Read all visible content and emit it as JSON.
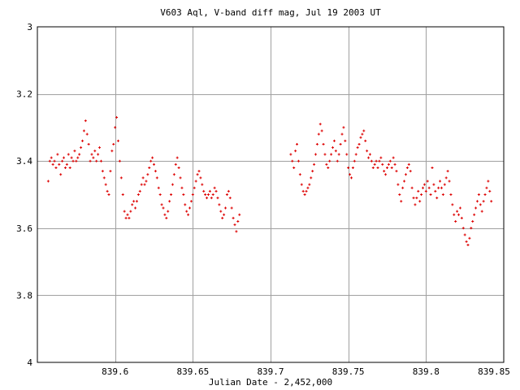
{
  "chart_data": {
    "type": "scatter",
    "title": "V603 Aql, V-band diff mag, Jul 19 2003 UT",
    "xlabel": "Julian Date - 2,452,000",
    "ylabel": "",
    "xlim": [
      839.55,
      839.85
    ],
    "ylim": [
      4.0,
      3.0
    ],
    "y_inverted": true,
    "grid": true,
    "x_ticks": [
      839.6,
      839.65,
      839.7,
      839.75,
      839.8,
      839.85
    ],
    "x_tick_labels": [
      "839.6",
      "839.65",
      "839.7",
      "839.75",
      "839.8",
      "839.85"
    ],
    "y_ticks": [
      3.0,
      3.2,
      3.4,
      3.6,
      3.8,
      4.0
    ],
    "y_tick_labels": [
      "3",
      "3.2",
      "3.4",
      "3.6",
      "3.8",
      "4"
    ],
    "marker_color": "#dd0000",
    "grid_color": "#a0a0a0",
    "series": [
      {
        "points": [
          [
            839.557,
            3.46
          ],
          [
            839.558,
            3.4
          ],
          [
            839.559,
            3.39
          ],
          [
            839.56,
            3.41
          ],
          [
            839.561,
            3.4
          ],
          [
            839.562,
            3.42
          ],
          [
            839.563,
            3.38
          ],
          [
            839.564,
            3.41
          ],
          [
            839.565,
            3.44
          ],
          [
            839.566,
            3.4
          ],
          [
            839.567,
            3.39
          ],
          [
            839.568,
            3.42
          ],
          [
            839.569,
            3.41
          ],
          [
            839.57,
            3.38
          ],
          [
            839.571,
            3.42
          ],
          [
            839.572,
            3.39
          ],
          [
            839.573,
            3.4
          ],
          [
            839.574,
            3.37
          ],
          [
            839.575,
            3.4
          ],
          [
            839.576,
            3.39
          ],
          [
            839.577,
            3.38
          ],
          [
            839.578,
            3.36
          ],
          [
            839.579,
            3.34
          ],
          [
            839.58,
            3.31
          ],
          [
            839.581,
            3.28
          ],
          [
            839.582,
            3.32
          ],
          [
            839.583,
            3.35
          ],
          [
            839.584,
            3.4
          ],
          [
            839.585,
            3.38
          ],
          [
            839.586,
            3.39
          ],
          [
            839.587,
            3.37
          ],
          [
            839.588,
            3.4
          ],
          [
            839.589,
            3.38
          ],
          [
            839.59,
            3.36
          ],
          [
            839.591,
            3.4
          ],
          [
            839.592,
            3.43
          ],
          [
            839.593,
            3.45
          ],
          [
            839.594,
            3.47
          ],
          [
            839.595,
            3.49
          ],
          [
            839.596,
            3.5
          ],
          [
            839.597,
            3.43
          ],
          [
            839.598,
            3.37
          ],
          [
            839.599,
            3.35
          ],
          [
            839.6,
            3.3
          ],
          [
            839.601,
            3.27
          ],
          [
            839.602,
            3.34
          ],
          [
            839.603,
            3.4
          ],
          [
            839.604,
            3.45
          ],
          [
            839.605,
            3.5
          ],
          [
            839.606,
            3.55
          ],
          [
            839.607,
            3.57
          ],
          [
            839.608,
            3.56
          ],
          [
            839.609,
            3.57
          ],
          [
            839.61,
            3.55
          ],
          [
            839.611,
            3.53
          ],
          [
            839.612,
            3.52
          ],
          [
            839.613,
            3.54
          ],
          [
            839.614,
            3.52
          ],
          [
            839.615,
            3.5
          ],
          [
            839.616,
            3.49
          ],
          [
            839.617,
            3.47
          ],
          [
            839.618,
            3.45
          ],
          [
            839.619,
            3.47
          ],
          [
            839.62,
            3.46
          ],
          [
            839.621,
            3.44
          ],
          [
            839.622,
            3.42
          ],
          [
            839.623,
            3.4
          ],
          [
            839.624,
            3.39
          ],
          [
            839.625,
            3.41
          ],
          [
            839.626,
            3.43
          ],
          [
            839.627,
            3.45
          ],
          [
            839.628,
            3.48
          ],
          [
            839.629,
            3.5
          ],
          [
            839.63,
            3.53
          ],
          [
            839.631,
            3.54
          ],
          [
            839.632,
            3.56
          ],
          [
            839.633,
            3.57
          ],
          [
            839.634,
            3.55
          ],
          [
            839.635,
            3.52
          ],
          [
            839.636,
            3.5
          ],
          [
            839.637,
            3.47
          ],
          [
            839.638,
            3.44
          ],
          [
            839.639,
            3.41
          ],
          [
            839.64,
            3.39
          ],
          [
            839.641,
            3.42
          ],
          [
            839.642,
            3.45
          ],
          [
            839.643,
            3.48
          ],
          [
            839.644,
            3.5
          ],
          [
            839.645,
            3.53
          ],
          [
            839.646,
            3.55
          ],
          [
            839.647,
            3.56
          ],
          [
            839.648,
            3.54
          ],
          [
            839.649,
            3.52
          ],
          [
            839.65,
            3.5
          ],
          [
            839.651,
            3.48
          ],
          [
            839.652,
            3.46
          ],
          [
            839.653,
            3.44
          ],
          [
            839.654,
            3.43
          ],
          [
            839.655,
            3.45
          ],
          [
            839.656,
            3.47
          ],
          [
            839.657,
            3.49
          ],
          [
            839.658,
            3.5
          ],
          [
            839.659,
            3.51
          ],
          [
            839.66,
            3.5
          ],
          [
            839.661,
            3.49
          ],
          [
            839.662,
            3.51
          ],
          [
            839.663,
            3.5
          ],
          [
            839.664,
            3.48
          ],
          [
            839.665,
            3.49
          ],
          [
            839.666,
            3.51
          ],
          [
            839.667,
            3.53
          ],
          [
            839.668,
            3.55
          ],
          [
            839.669,
            3.57
          ],
          [
            839.67,
            3.56
          ],
          [
            839.671,
            3.54
          ],
          [
            839.672,
            3.5
          ],
          [
            839.673,
            3.49
          ],
          [
            839.674,
            3.51
          ],
          [
            839.675,
            3.54
          ],
          [
            839.676,
            3.57
          ],
          [
            839.677,
            3.59
          ],
          [
            839.678,
            3.61
          ],
          [
            839.679,
            3.58
          ],
          [
            839.68,
            3.56
          ],
          [
            839.713,
            3.38
          ],
          [
            839.714,
            3.4
          ],
          [
            839.715,
            3.42
          ],
          [
            839.716,
            3.37
          ],
          [
            839.717,
            3.35
          ],
          [
            839.718,
            3.4
          ],
          [
            839.719,
            3.44
          ],
          [
            839.72,
            3.47
          ],
          [
            839.721,
            3.49
          ],
          [
            839.722,
            3.5
          ],
          [
            839.723,
            3.49
          ],
          [
            839.724,
            3.48
          ],
          [
            839.725,
            3.47
          ],
          [
            839.726,
            3.45
          ],
          [
            839.727,
            3.43
          ],
          [
            839.728,
            3.41
          ],
          [
            839.729,
            3.38
          ],
          [
            839.73,
            3.35
          ],
          [
            839.731,
            3.32
          ],
          [
            839.732,
            3.29
          ],
          [
            839.733,
            3.31
          ],
          [
            839.734,
            3.35
          ],
          [
            839.735,
            3.38
          ],
          [
            839.736,
            3.41
          ],
          [
            839.737,
            3.42
          ],
          [
            839.738,
            3.4
          ],
          [
            839.739,
            3.38
          ],
          [
            839.74,
            3.36
          ],
          [
            839.741,
            3.34
          ],
          [
            839.742,
            3.37
          ],
          [
            839.743,
            3.4
          ],
          [
            839.744,
            3.38
          ],
          [
            839.745,
            3.35
          ],
          [
            839.746,
            3.32
          ],
          [
            839.747,
            3.3
          ],
          [
            839.748,
            3.34
          ],
          [
            839.749,
            3.38
          ],
          [
            839.75,
            3.42
          ],
          [
            839.751,
            3.44
          ],
          [
            839.752,
            3.45
          ],
          [
            839.753,
            3.42
          ],
          [
            839.754,
            3.4
          ],
          [
            839.755,
            3.38
          ],
          [
            839.756,
            3.36
          ],
          [
            839.757,
            3.35
          ],
          [
            839.758,
            3.33
          ],
          [
            839.759,
            3.32
          ],
          [
            839.76,
            3.31
          ],
          [
            839.761,
            3.34
          ],
          [
            839.762,
            3.37
          ],
          [
            839.763,
            3.39
          ],
          [
            839.764,
            3.38
          ],
          [
            839.765,
            3.4
          ],
          [
            839.766,
            3.42
          ],
          [
            839.767,
            3.41
          ],
          [
            839.768,
            3.4
          ],
          [
            839.769,
            3.42
          ],
          [
            839.77,
            3.4
          ],
          [
            839.771,
            3.39
          ],
          [
            839.772,
            3.41
          ],
          [
            839.773,
            3.43
          ],
          [
            839.774,
            3.44
          ],
          [
            839.775,
            3.42
          ],
          [
            839.776,
            3.41
          ],
          [
            839.777,
            3.4
          ],
          [
            839.778,
            3.42
          ],
          [
            839.779,
            3.39
          ],
          [
            839.78,
            3.41
          ],
          [
            839.781,
            3.43
          ],
          [
            839.782,
            3.47
          ],
          [
            839.783,
            3.5
          ],
          [
            839.784,
            3.52
          ],
          [
            839.785,
            3.48
          ],
          [
            839.786,
            3.46
          ],
          [
            839.787,
            3.44
          ],
          [
            839.788,
            3.42
          ],
          [
            839.789,
            3.41
          ],
          [
            839.79,
            3.43
          ],
          [
            839.791,
            3.48
          ],
          [
            839.792,
            3.51
          ],
          [
            839.793,
            3.53
          ],
          [
            839.794,
            3.51
          ],
          [
            839.795,
            3.49
          ],
          [
            839.796,
            3.52
          ],
          [
            839.797,
            3.5
          ],
          [
            839.798,
            3.48
          ],
          [
            839.799,
            3.47
          ],
          [
            839.8,
            3.49
          ],
          [
            839.801,
            3.46
          ],
          [
            839.802,
            3.48
          ],
          [
            839.803,
            3.5
          ],
          [
            839.804,
            3.42
          ],
          [
            839.805,
            3.47
          ],
          [
            839.806,
            3.49
          ],
          [
            839.807,
            3.51
          ],
          [
            839.808,
            3.48
          ],
          [
            839.809,
            3.46
          ],
          [
            839.81,
            3.48
          ],
          [
            839.811,
            3.5
          ],
          [
            839.812,
            3.47
          ],
          [
            839.813,
            3.45
          ],
          [
            839.814,
            3.43
          ],
          [
            839.815,
            3.46
          ],
          [
            839.816,
            3.5
          ],
          [
            839.817,
            3.53
          ],
          [
            839.818,
            3.56
          ],
          [
            839.819,
            3.58
          ],
          [
            839.82,
            3.55
          ],
          [
            839.821,
            3.56
          ],
          [
            839.822,
            3.54
          ],
          [
            839.823,
            3.57
          ],
          [
            839.824,
            3.6
          ],
          [
            839.825,
            3.62
          ],
          [
            839.826,
            3.64
          ],
          [
            839.827,
            3.65
          ],
          [
            839.828,
            3.63
          ],
          [
            839.829,
            3.6
          ],
          [
            839.83,
            3.58
          ],
          [
            839.831,
            3.56
          ],
          [
            839.832,
            3.54
          ],
          [
            839.833,
            3.52
          ],
          [
            839.834,
            3.5
          ],
          [
            839.835,
            3.53
          ],
          [
            839.836,
            3.55
          ],
          [
            839.837,
            3.52
          ],
          [
            839.838,
            3.5
          ],
          [
            839.839,
            3.48
          ],
          [
            839.84,
            3.46
          ],
          [
            839.841,
            3.49
          ],
          [
            839.842,
            3.52
          ]
        ]
      }
    ]
  }
}
